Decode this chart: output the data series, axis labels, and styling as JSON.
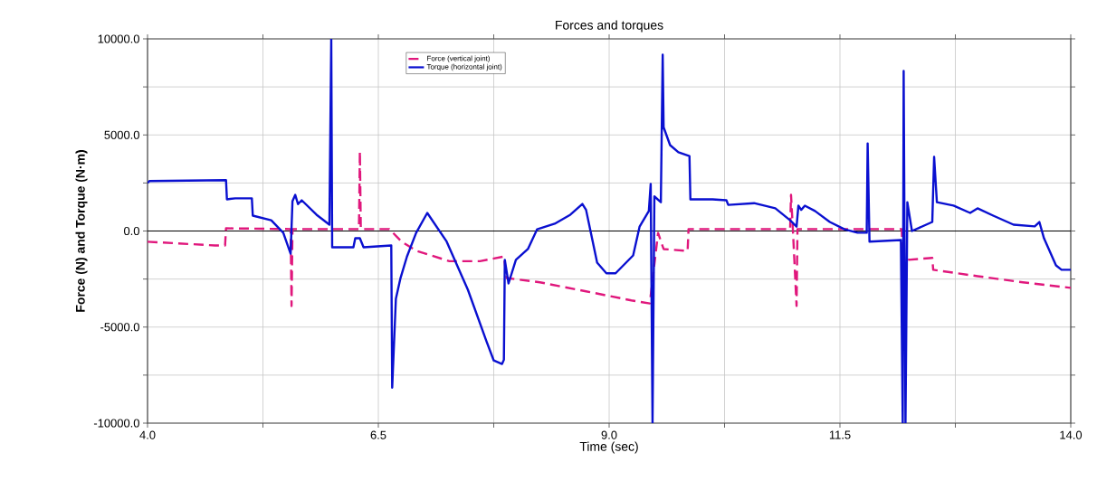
{
  "chart_data": {
    "type": "line",
    "title": "Forces and torques",
    "xlabel": "Time (sec)",
    "ylabel": "Force (N) and Torque (N·m)",
    "xlim": [
      4,
      14
    ],
    "ylim": [
      -10000,
      10000
    ],
    "xticks": [
      {
        "value": 4,
        "label": "4.0"
      },
      {
        "value": 5.25,
        "label": null
      },
      {
        "value": 6.5,
        "label": "6.5"
      },
      {
        "value": 7.75,
        "label": null
      },
      {
        "value": 9,
        "label": "9.0"
      },
      {
        "value": 10.25,
        "label": null
      },
      {
        "value": 11.5,
        "label": "11.5"
      },
      {
        "value": 12.75,
        "label": null
      },
      {
        "value": 14,
        "label": "14.0"
      }
    ],
    "yticks": [
      {
        "value": -10000,
        "label": "-10000.0"
      },
      {
        "value": -7500,
        "label": null
      },
      {
        "value": -5000,
        "label": "-5000.0"
      },
      {
        "value": -2500,
        "label": null
      },
      {
        "value": 0,
        "label": "0.0"
      },
      {
        "value": 2500,
        "label": null
      },
      {
        "value": 5000,
        "label": "5000.0"
      },
      {
        "value": 7500,
        "label": null
      },
      {
        "value": 10000,
        "label": "10000.0"
      }
    ],
    "grid": true,
    "legend": "top left",
    "ref_lines": [
      {
        "axis": "y",
        "value": 0,
        "color": "#000000"
      }
    ],
    "series": [
      {
        "name": "Force (vertical joint)",
        "color": "#e0177c",
        "line_style": "dashed",
        "x": [
          4.0,
          4.73,
          4.84,
          4.85,
          5.55,
          5.56,
          5.57,
          6.29,
          6.3,
          6.31,
          6.62,
          6.75,
          6.91,
          7.27,
          7.6,
          7.86,
          7.89,
          8.25,
          8.75,
          9.24,
          9.44,
          9.53,
          9.59,
          9.82,
          9.85,
          9.86,
          10.96,
          10.97,
          10.99,
          11.03,
          11.04,
          12.17,
          12.18,
          12.24,
          12.5,
          12.51,
          12.99,
          13.48,
          14.0
        ],
        "values": [
          -560,
          -750,
          -750,
          140,
          100,
          -3900,
          100,
          100,
          4140,
          100,
          100,
          -550,
          -1030,
          -1570,
          -1570,
          -1330,
          -2450,
          -2670,
          -3140,
          -3610,
          -3770,
          -100,
          -940,
          -1030,
          -1030,
          100,
          100,
          1880,
          100,
          -3900,
          100,
          100,
          -1790,
          -1500,
          -1400,
          -2020,
          -2350,
          -2670,
          -2960
        ]
      },
      {
        "name": "Torque (horizontal joint)",
        "color": "#0a10d0",
        "line_style": "solid",
        "x": [
          4.0,
          4.02,
          4.85,
          4.86,
          4.95,
          5.13,
          5.14,
          5.34,
          5.47,
          5.55,
          5.57,
          5.6,
          5.63,
          5.67,
          5.83,
          5.97,
          5.99,
          6.0,
          6.23,
          6.25,
          6.3,
          6.34,
          6.64,
          6.65,
          6.69,
          6.74,
          6.81,
          6.91,
          7.03,
          7.24,
          7.47,
          7.67,
          7.75,
          7.84,
          7.86,
          7.87,
          7.91,
          7.99,
          8.12,
          8.22,
          8.41,
          8.58,
          8.71,
          8.75,
          8.87,
          8.97,
          9.07,
          9.26,
          9.33,
          9.43,
          9.45,
          9.47,
          9.49,
          9.56,
          9.58,
          9.59,
          9.66,
          9.75,
          9.87,
          9.88,
          10.12,
          10.27,
          10.29,
          10.57,
          10.8,
          10.96,
          11.03,
          11.05,
          11.08,
          11.12,
          11.23,
          11.39,
          11.55,
          11.69,
          11.79,
          11.8,
          11.82,
          12.16,
          12.18,
          12.19,
          12.21,
          12.23,
          12.28,
          12.5,
          12.52,
          12.55,
          12.73,
          12.91,
          12.99,
          13.16,
          13.38,
          13.61,
          13.66,
          13.71,
          13.84,
          13.9,
          14.0
        ],
        "values": [
          2500,
          2600,
          2650,
          1650,
          1700,
          1700,
          800,
          560,
          -90,
          -1180,
          1550,
          1880,
          1400,
          1600,
          850,
          330,
          10000,
          -850,
          -850,
          -380,
          -380,
          -850,
          -750,
          -8150,
          -3530,
          -2450,
          -1330,
          -90,
          940,
          -550,
          -3060,
          -5720,
          -6740,
          -6920,
          -6700,
          -1500,
          -2730,
          -1500,
          -940,
          90,
          380,
          850,
          1410,
          1100,
          -1650,
          -2200,
          -2200,
          -1270,
          230,
          1040,
          2450,
          -10000,
          1800,
          1500,
          9180,
          5400,
          4470,
          4100,
          3900,
          1650,
          1650,
          1600,
          1360,
          1450,
          1180,
          560,
          230,
          1320,
          1100,
          1320,
          1040,
          470,
          90,
          -90,
          -90,
          4560,
          -550,
          -470,
          -10000,
          8330,
          -10000,
          1500,
          0,
          470,
          3860,
          1500,
          1320,
          940,
          1180,
          800,
          330,
          240,
          470,
          -380,
          -1790,
          -2020,
          -2020
        ]
      }
    ]
  }
}
